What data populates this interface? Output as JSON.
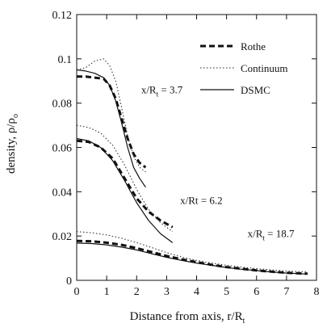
{
  "chart_data": {
    "type": "line",
    "xlabel": "Distance from axis, r/R",
    "xlabel_sub": "t",
    "ylabel": "density, ρ/ρ",
    "ylabel_sub": "o",
    "xlim": [
      0,
      8
    ],
    "ylim": [
      0,
      0.12
    ],
    "x_ticks": [
      0,
      1,
      2,
      3,
      4,
      5,
      6,
      7,
      8
    ],
    "y_ticks": [
      0,
      0.02,
      0.04,
      0.06,
      0.08,
      0.1,
      0.12
    ],
    "y_tick_labels": [
      "0",
      "0.02",
      "0.04",
      "0.06",
      "0.08",
      "0.1",
      "0.12"
    ],
    "grid": false,
    "legend_position": "top-right",
    "legend": [
      {
        "label": "Rothe",
        "style": "dashed-bold"
      },
      {
        "label": "Continuum",
        "style": "dotted"
      },
      {
        "label": "DSMC",
        "style": "solid"
      }
    ],
    "annotations": [
      {
        "text": "x/R",
        "sub": "t",
        "suffix": " = 3.7",
        "x": 2.15,
        "y": 0.0845
      },
      {
        "text": "x/Rt",
        "sub": "",
        "suffix": " = 6.2",
        "x": 3.45,
        "y": 0.0345
      },
      {
        "text": "x/R",
        "sub": "t",
        "suffix": " = 18.7",
        "x": 5.7,
        "y": 0.0195
      }
    ],
    "series": [
      {
        "style": "dashed-bold",
        "group": "x/R_t = 3.7",
        "x": [
          0,
          0.3,
          0.6,
          0.9,
          1.1,
          1.3,
          1.5,
          1.7,
          1.9,
          2.1,
          2.3
        ],
        "y": [
          0.092,
          0.092,
          0.0915,
          0.091,
          0.088,
          0.082,
          0.073,
          0.064,
          0.057,
          0.053,
          0.051
        ]
      },
      {
        "style": "dotted",
        "group": "x/R_t = 3.7",
        "x": [
          0,
          0.3,
          0.6,
          0.9,
          1.1,
          1.3,
          1.5,
          1.7,
          1.9,
          2.1,
          2.3
        ],
        "y": [
          0.095,
          0.096,
          0.099,
          0.1,
          0.097,
          0.09,
          0.078,
          0.065,
          0.056,
          0.051,
          0.049
        ]
      },
      {
        "style": "solid",
        "group": "x/R_t = 3.7",
        "x": [
          0,
          0.3,
          0.6,
          0.9,
          1.1,
          1.3,
          1.5,
          1.7,
          1.9,
          2.1,
          2.3
        ],
        "y": [
          0.095,
          0.0945,
          0.0935,
          0.0915,
          0.088,
          0.081,
          0.071,
          0.06,
          0.051,
          0.046,
          0.042
        ]
      },
      {
        "style": "dashed-bold",
        "group": "x/Rt = 6.2",
        "x": [
          0,
          0.4,
          0.8,
          1.2,
          1.6,
          2.0,
          2.4,
          2.8,
          3.2
        ],
        "y": [
          0.063,
          0.0625,
          0.06,
          0.055,
          0.046,
          0.037,
          0.031,
          0.027,
          0.024
        ]
      },
      {
        "style": "dotted",
        "group": "x/Rt = 6.2",
        "x": [
          0,
          0.4,
          0.8,
          1.2,
          1.6,
          2.0,
          2.4,
          2.8,
          3.2
        ],
        "y": [
          0.07,
          0.069,
          0.0665,
          0.061,
          0.052,
          0.041,
          0.032,
          0.026,
          0.022
        ]
      },
      {
        "style": "solid",
        "group": "x/Rt = 6.2",
        "x": [
          0,
          0.4,
          0.8,
          1.2,
          1.6,
          2.0,
          2.4,
          2.8,
          3.2
        ],
        "y": [
          0.064,
          0.063,
          0.06,
          0.054,
          0.045,
          0.035,
          0.027,
          0.021,
          0.017
        ]
      },
      {
        "style": "dashed-bold",
        "group": "x/R_t = 18.7",
        "x": [
          0,
          0.5,
          1,
          1.5,
          2,
          2.5,
          3,
          3.5,
          4,
          4.5,
          5,
          5.5,
          6,
          6.5,
          7,
          7.7
        ],
        "y": [
          0.0178,
          0.0176,
          0.017,
          0.016,
          0.0145,
          0.0128,
          0.011,
          0.0095,
          0.0082,
          0.007,
          0.006,
          0.0052,
          0.0045,
          0.0039,
          0.0034,
          0.003
        ]
      },
      {
        "style": "dotted",
        "group": "x/R_t = 18.7",
        "x": [
          0,
          0.5,
          1,
          1.5,
          2,
          2.5,
          3,
          3.5,
          4,
          4.5,
          5,
          5.5,
          6,
          6.5,
          7,
          7.7
        ],
        "y": [
          0.022,
          0.0215,
          0.0205,
          0.019,
          0.017,
          0.0148,
          0.0125,
          0.0105,
          0.009,
          0.0078,
          0.0068,
          0.006,
          0.0053,
          0.0047,
          0.0042,
          0.0038
        ]
      },
      {
        "style": "solid",
        "group": "x/R_t = 18.7",
        "x": [
          0,
          0.5,
          1,
          1.5,
          2,
          2.5,
          3,
          3.5,
          4,
          4.5,
          5,
          5.5,
          6,
          6.5,
          7,
          7.7
        ],
        "y": [
          0.0168,
          0.0166,
          0.016,
          0.015,
          0.0137,
          0.012,
          0.0104,
          0.009,
          0.0078,
          0.0068,
          0.0058,
          0.005,
          0.0044,
          0.0038,
          0.0033,
          0.0028
        ]
      }
    ]
  }
}
